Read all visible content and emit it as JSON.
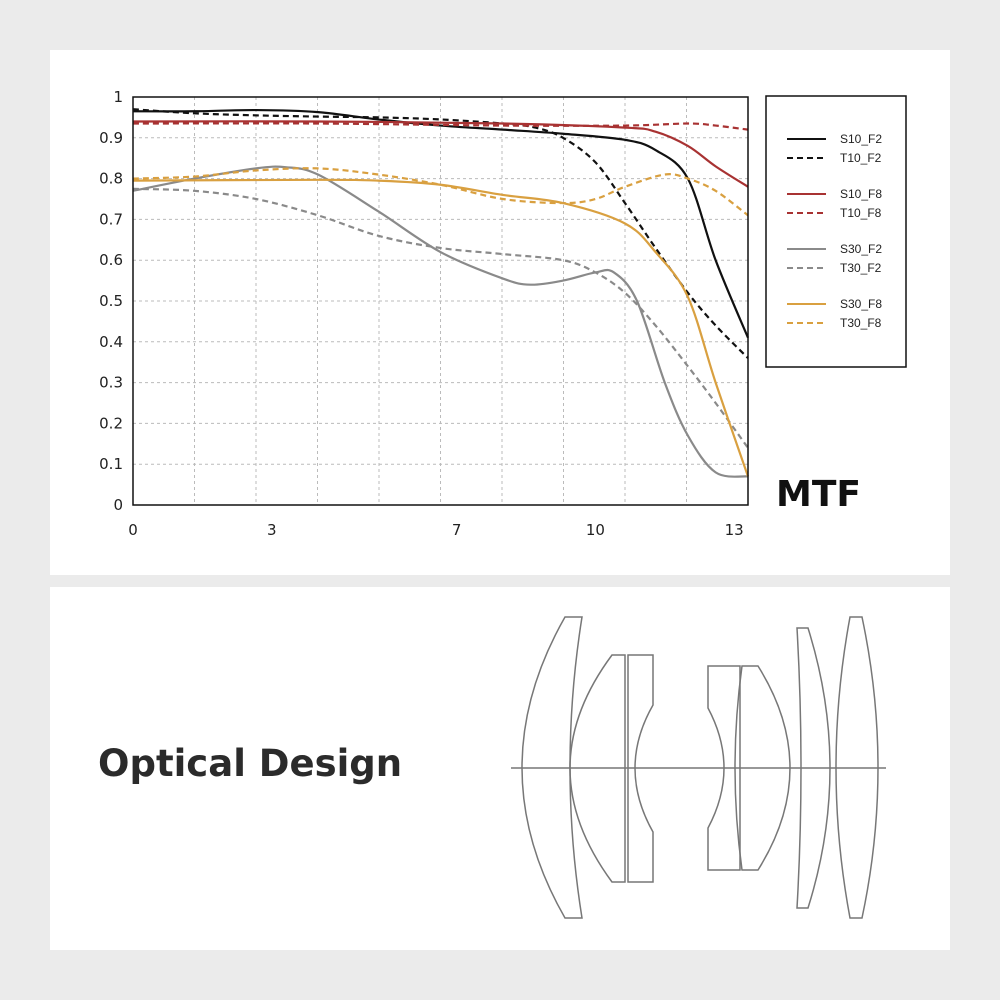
{
  "chart_data": {
    "type": "line",
    "title": "MTF",
    "xlabel": "",
    "ylabel": "",
    "xlim": [
      0,
      13.3
    ],
    "ylim": [
      0,
      1
    ],
    "x_ticks": [
      "0",
      "3",
      "7",
      "10",
      "13"
    ],
    "y_ticks": [
      "0",
      "0.1",
      "0.2",
      "0.3",
      "0.4",
      "0.5",
      "0.6",
      "0.7",
      "0.8",
      "0.9",
      "1"
    ],
    "grid": true,
    "legend_position": "right",
    "series": [
      {
        "name": "S10_F2",
        "color": "#111111",
        "dashed": false,
        "x": [
          0,
          1.33,
          2.66,
          4,
          5.3,
          6.65,
          8,
          9.3,
          10.64,
          11.3,
          12,
          12.6,
          13.3
        ],
        "y": [
          0.965,
          0.965,
          0.968,
          0.963,
          0.945,
          0.93,
          0.92,
          0.91,
          0.895,
          0.87,
          0.8,
          0.6,
          0.41
        ]
      },
      {
        "name": "T10_F2",
        "color": "#111111",
        "dashed": true,
        "x": [
          0,
          1.33,
          2.66,
          4,
          5.3,
          6.65,
          8,
          8.7,
          9.3,
          10,
          10.64,
          11.3,
          12,
          12.6,
          13.3
        ],
        "y": [
          0.97,
          0.96,
          0.955,
          0.952,
          0.95,
          0.945,
          0.935,
          0.925,
          0.9,
          0.84,
          0.74,
          0.63,
          0.52,
          0.44,
          0.36
        ]
      },
      {
        "name": "S10_F8",
        "color": "#a83232",
        "dashed": false,
        "x": [
          0,
          4,
          8,
          10.64,
          11.3,
          12,
          12.6,
          13.3
        ],
        "y": [
          0.94,
          0.94,
          0.935,
          0.925,
          0.915,
          0.88,
          0.83,
          0.78
        ]
      },
      {
        "name": "T10_F8",
        "color": "#a83232",
        "dashed": true,
        "x": [
          0,
          4,
          8,
          10.64,
          12,
          12.6,
          13.3
        ],
        "y": [
          0.935,
          0.935,
          0.93,
          0.93,
          0.935,
          0.93,
          0.92
        ]
      },
      {
        "name": "S30_F2",
        "color": "#8a8a8a",
        "dashed": false,
        "x": [
          0,
          1.33,
          2.66,
          3.3,
          4,
          5.3,
          6.65,
          8,
          8.6,
          9.3,
          10,
          10.4,
          10.9,
          11.5,
          12,
          12.6,
          13.3
        ],
        "y": [
          0.77,
          0.8,
          0.825,
          0.828,
          0.81,
          0.72,
          0.62,
          0.555,
          0.54,
          0.55,
          0.57,
          0.57,
          0.5,
          0.3,
          0.17,
          0.08,
          0.07
        ]
      },
      {
        "name": "T30_F2",
        "color": "#8a8a8a",
        "dashed": true,
        "x": [
          0,
          1.33,
          2.66,
          4,
          5.3,
          6.65,
          8,
          9.3,
          10,
          10.64,
          11.3,
          12,
          12.6,
          13.3
        ],
        "y": [
          0.775,
          0.77,
          0.75,
          0.71,
          0.66,
          0.63,
          0.615,
          0.6,
          0.57,
          0.52,
          0.44,
          0.34,
          0.25,
          0.14
        ]
      },
      {
        "name": "S30_F8",
        "color": "#d9a040",
        "dashed": false,
        "x": [
          0,
          4,
          5.3,
          6.65,
          8,
          9.3,
          10.64,
          11.3,
          12,
          12.6,
          13.3
        ],
        "y": [
          0.795,
          0.797,
          0.795,
          0.785,
          0.76,
          0.74,
          0.69,
          0.62,
          0.51,
          0.3,
          0.07
        ]
      },
      {
        "name": "T30_F8",
        "color": "#d9a040",
        "dashed": true,
        "x": [
          0,
          1.33,
          2.66,
          4,
          5.3,
          6.65,
          8,
          9.3,
          10,
          10.64,
          11.5,
          12,
          12.6,
          13.3
        ],
        "y": [
          0.8,
          0.805,
          0.82,
          0.825,
          0.81,
          0.785,
          0.75,
          0.74,
          0.75,
          0.78,
          0.81,
          0.8,
          0.77,
          0.71
        ]
      }
    ]
  },
  "labels": {
    "mtf": "MTF",
    "optical_design": "Optical Design"
  }
}
